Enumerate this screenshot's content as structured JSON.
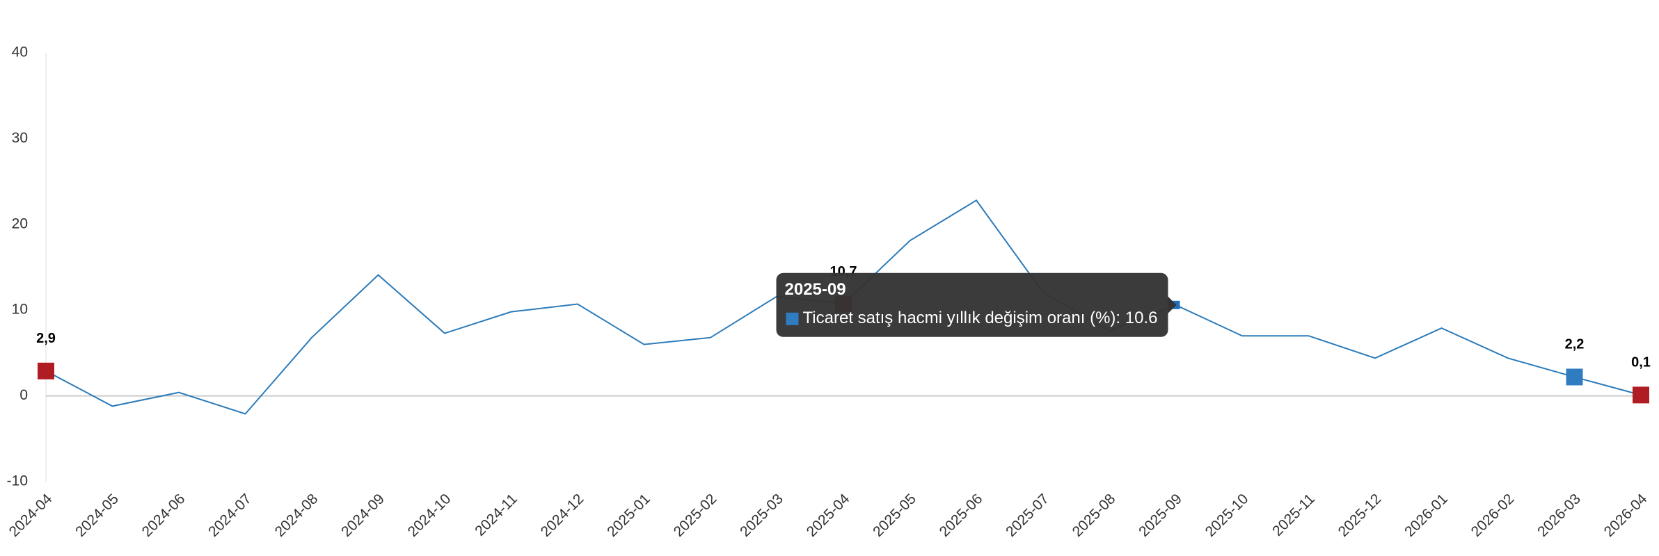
{
  "chart_data": {
    "type": "line",
    "categories": [
      "2024-04",
      "2024-05",
      "2024-06",
      "2024-07",
      "2024-08",
      "2024-09",
      "2024-10",
      "2024-11",
      "2024-12",
      "2025-01",
      "2025-02",
      "2025-03",
      "2025-04",
      "2025-05",
      "2025-06",
      "2025-07",
      "2025-08",
      "2025-09",
      "2025-10",
      "2025-11",
      "2025-12",
      "2026-01",
      "2026-02",
      "2026-03",
      "2026-04"
    ],
    "values": [
      2.9,
      -1.2,
      0.4,
      -2.1,
      6.8,
      14.1,
      7.3,
      9.8,
      10.7,
      6.0,
      6.8,
      11.6,
      10.7,
      18.1,
      22.8,
      12.1,
      7.6,
      10.6,
      7.0,
      7.0,
      4.4,
      7.9,
      4.4,
      2.2,
      0.1
    ],
    "value_labels": [
      "2,9",
      null,
      null,
      null,
      null,
      null,
      null,
      null,
      null,
      null,
      null,
      null,
      "10,7",
      null,
      null,
      null,
      null,
      null,
      null,
      null,
      null,
      null,
      null,
      "2,2",
      "0,1"
    ],
    "marker_colors": [
      "#b01c24",
      null,
      null,
      null,
      null,
      null,
      null,
      null,
      null,
      null,
      null,
      null,
      "#b01c24",
      null,
      null,
      null,
      null,
      "#1f6fb8",
      null,
      null,
      null,
      null,
      null,
      "#2f7dc0",
      "#b01c24"
    ],
    "color": "#2b7bba",
    "ylim": [
      -10,
      40
    ],
    "yticks": [
      -10,
      0,
      10,
      20,
      30,
      40
    ],
    "tooltip": {
      "title": "2025-09",
      "text": "Ticaret satış hacmi yıllık değişim oranı (%): 10.6",
      "color": "#2f7dc0"
    }
  }
}
